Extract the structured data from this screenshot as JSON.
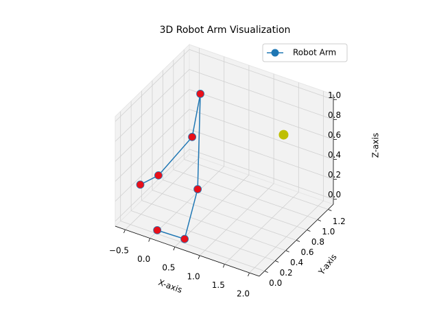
{
  "chart_data": {
    "type": "line3d",
    "title": "3D Robot Arm Visualization",
    "xlabel": "X-axis",
    "ylabel": "Y-axis",
    "zlabel": "Z-axis",
    "xlim": [
      -0.7,
      2.2
    ],
    "ylim": [
      -0.1,
      1.3
    ],
    "zlim": [
      -0.05,
      1.05
    ],
    "xticks": [
      {
        "value": -0.5,
        "label": "−0.5"
      },
      {
        "value": 0,
        "label": "0.0"
      },
      0.5,
      {
        "value": 1,
        "label": "1.0"
      },
      1.5,
      {
        "value": 2,
        "label": "2.0"
      }
    ],
    "yticks": [
      {
        "value": 0,
        "label": "0.0"
      },
      0.2,
      0.4,
      0.6,
      0.8,
      {
        "value": 1,
        "label": "1.0"
      },
      1.2
    ],
    "zticks": [
      {
        "value": 0,
        "label": "0.0"
      },
      0.2,
      0.4,
      0.6,
      0.8,
      {
        "value": 1,
        "label": "1.0"
      }
    ],
    "grid": true,
    "legend": "upper right",
    "series": [
      {
        "name": "Robot Arm",
        "color": "#1f77b4",
        "marker_color": "#e8101a",
        "x": [
          -0.43,
          -0.15,
          0.22,
          0.14,
          0.49,
          0.6,
          0.06
        ],
        "y": [
          0.12,
          0.2,
          0.49,
          0.72,
          0.34,
          -0.01,
          -0.02
        ],
        "z": [
          0.3,
          0.4,
          0.7,
          1.0,
          0.3,
          0.0,
          0.0
        ]
      }
    ],
    "target": {
      "x": 1.39,
      "y": 1.12,
      "z": 0.6,
      "color": "#bfbf00"
    }
  }
}
